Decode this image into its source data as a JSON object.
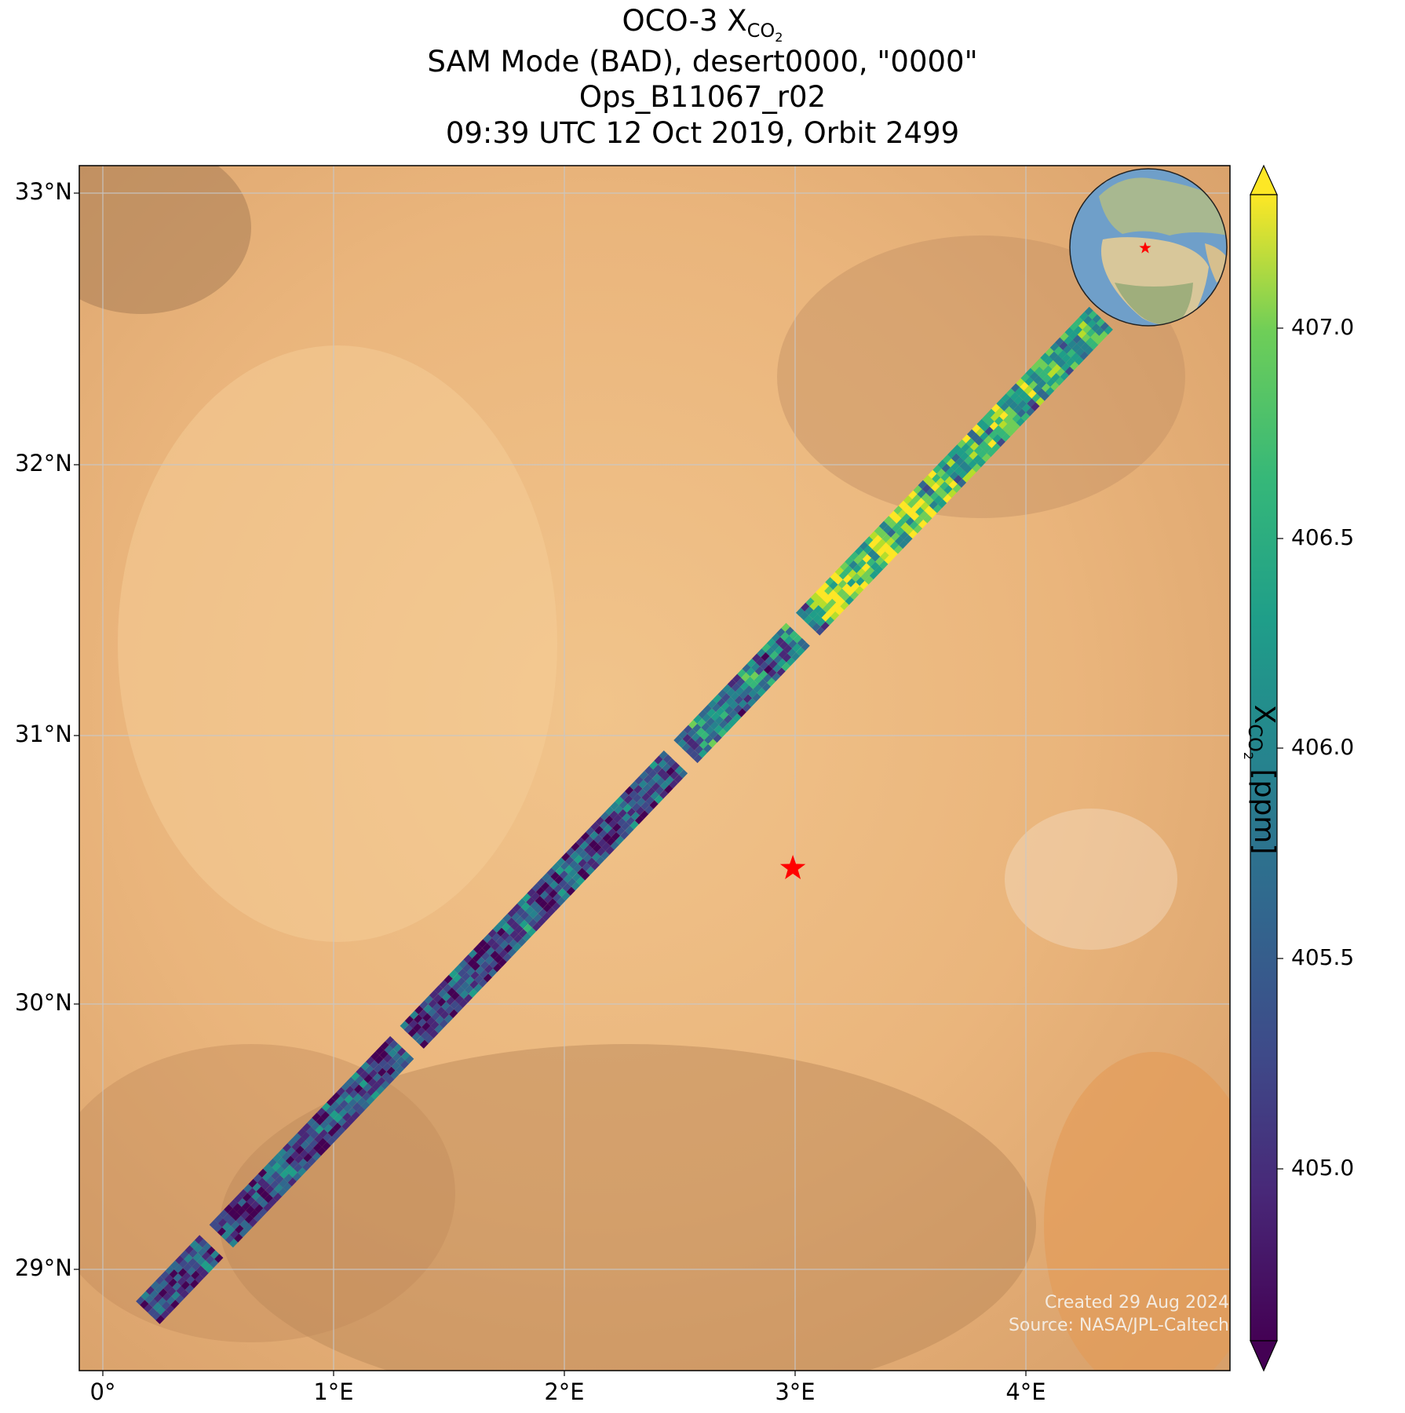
{
  "title": {
    "line1_prefix": "OCO-3 X",
    "line1_sub": "CO",
    "line1_sub2": "2",
    "line2": "SAM Mode (BAD), desert0000, \"0000\"",
    "line3": "Ops_B11067_r02",
    "line4": "09:39 UTC 12 Oct 2019, Orbit 2499"
  },
  "map": {
    "lat_labels": [
      "33°N",
      "32°N",
      "31°N",
      "30°N",
      "29°N"
    ],
    "lon_labels": [
      "0°",
      "1°E",
      "2°E",
      "3°E",
      "4°E"
    ],
    "target_marker": {
      "name": "desert0000",
      "lon": 2.99,
      "lat": 30.5,
      "color": "#ff0000"
    },
    "swath": {
      "start": {
        "lon": 0.2,
        "lat": 28.85
      },
      "end": {
        "lon": 4.35,
        "lat": 32.55
      },
      "gaps_fraction": [
        0.07,
        0.27,
        0.555,
        0.685
      ]
    }
  },
  "colorbar": {
    "title_prefix": "X",
    "title_sub": "CO",
    "title_sub2": "2",
    "title_suffix": " [ppm]",
    "min": 404.6,
    "max": 407.25,
    "ticks": [
      "407.0",
      "406.5",
      "406.0",
      "405.5",
      "405.0"
    ],
    "colormap": "viridis"
  },
  "credit": {
    "line1": "Created 29 Aug 2024",
    "line2": "Source: NASA/JPL-Caltech"
  }
}
